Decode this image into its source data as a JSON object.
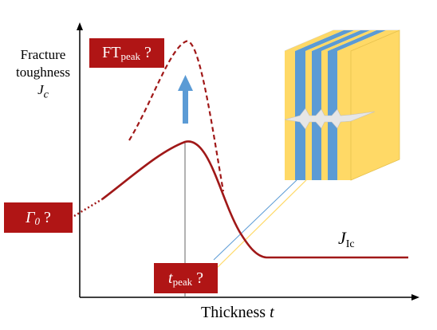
{
  "y_axis": {
    "line1": "Fracture",
    "line2": "toughness",
    "symbol_main": "J",
    "symbol_sub": "c"
  },
  "x_axis": {
    "word": "Thickness",
    "symbol": "t"
  },
  "labels": {
    "ft_peak": {
      "main": "FT",
      "sub": "peak",
      "suffix": " ?"
    },
    "gamma0": {
      "main": "Γ",
      "sub": "0",
      "suffix": " ?"
    },
    "t_peak": {
      "main": "t",
      "sub": "peak",
      "suffix": " ?"
    },
    "j_ic": {
      "main": "J",
      "sub": "Ic"
    }
  },
  "colors": {
    "curve": "#a01818",
    "tag_fill": "#b01515",
    "arrow": "#5b9bd5",
    "layer_blue": "#5b9bd5",
    "layer_yellow": "#ffd966",
    "crack": "#e6e6e6"
  },
  "icons": {
    "arrow": "up-arrow-icon",
    "specimen": "layered-block-with-crack"
  }
}
